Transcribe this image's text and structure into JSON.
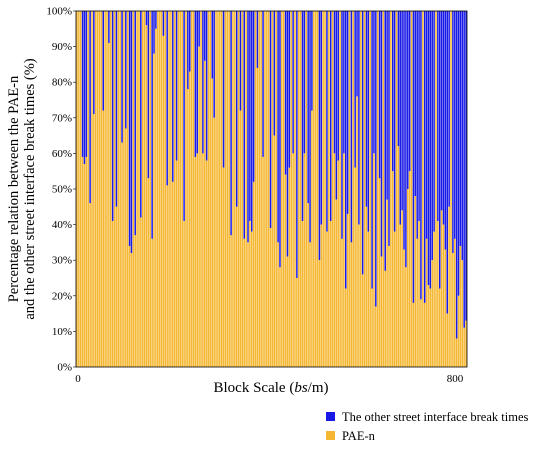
{
  "chart_data": {
    "type": "bar",
    "stacked": true,
    "normalized": true,
    "x_tick_labels": [
      "0",
      "800"
    ],
    "xlim": [
      0,
      800
    ],
    "ylim": [
      0,
      100
    ],
    "y_ticks": [
      0,
      10,
      20,
      30,
      40,
      50,
      60,
      70,
      80,
      90,
      100
    ],
    "y_tick_suffix": "%",
    "ylabel_line1": "Percentage relation between the PAE-n",
    "ylabel_line2": "and the other street interface break times (%)",
    "xlabel_prefix": "Block Scale (",
    "xlabel_italic": "bs",
    "xlabel_suffix": "/m)",
    "series": [
      {
        "name": "PAE-n",
        "color": "#F5B731",
        "values": [
          100,
          100,
          100,
          59,
          57,
          59,
          100,
          46,
          100,
          71,
          100,
          100,
          100,
          100,
          72,
          100,
          100,
          91,
          100,
          41,
          100,
          45,
          100,
          100,
          63,
          100,
          67,
          100,
          34,
          32,
          100,
          37,
          100,
          100,
          42,
          100,
          100,
          96,
          53,
          100,
          36,
          88,
          95,
          100,
          100,
          100,
          93,
          100,
          51,
          100,
          100,
          52,
          100,
          58,
          100,
          100,
          100,
          41,
          100,
          78,
          83,
          100,
          100,
          59,
          60,
          90,
          100,
          60,
          86,
          58,
          100,
          100,
          81,
          70,
          100,
          100,
          100,
          100,
          56,
          100,
          100,
          100,
          37,
          100,
          100,
          45,
          100,
          72,
          100,
          36,
          100,
          35,
          41,
          38,
          52,
          100,
          84,
          100,
          100,
          59,
          100,
          100,
          100,
          39,
          100,
          65,
          100,
          35,
          28,
          100,
          100,
          54,
          31,
          56,
          100,
          60,
          100,
          25,
          100,
          100,
          41,
          60,
          100,
          46,
          35,
          72,
          100,
          100,
          100,
          30,
          40,
          100,
          100,
          38,
          100,
          41,
          100,
          60,
          47,
          58,
          100,
          36,
          60,
          22,
          43,
          100,
          35,
          100,
          56,
          76,
          40,
          100,
          26,
          100,
          45,
          38,
          100,
          22,
          60,
          17,
          100,
          53,
          31,
          100,
          27,
          47,
          34,
          100,
          55,
          38,
          100,
          62,
          40,
          44,
          33,
          28,
          50,
          55,
          100,
          18,
          48,
          36,
          41,
          19,
          100,
          18,
          36,
          23,
          22,
          30,
          38,
          100,
          41,
          22,
          44,
          40,
          33,
          15,
          45,
          100,
          32,
          36,
          8,
          20,
          34,
          30,
          11,
          13
        ]
      },
      {
        "name": "The other street interface break times",
        "color": "#1A1AE6"
      }
    ],
    "legend": {
      "placement": "bottom-right",
      "entries": [
        "The other street interface break times",
        "PAE-n"
      ]
    }
  }
}
